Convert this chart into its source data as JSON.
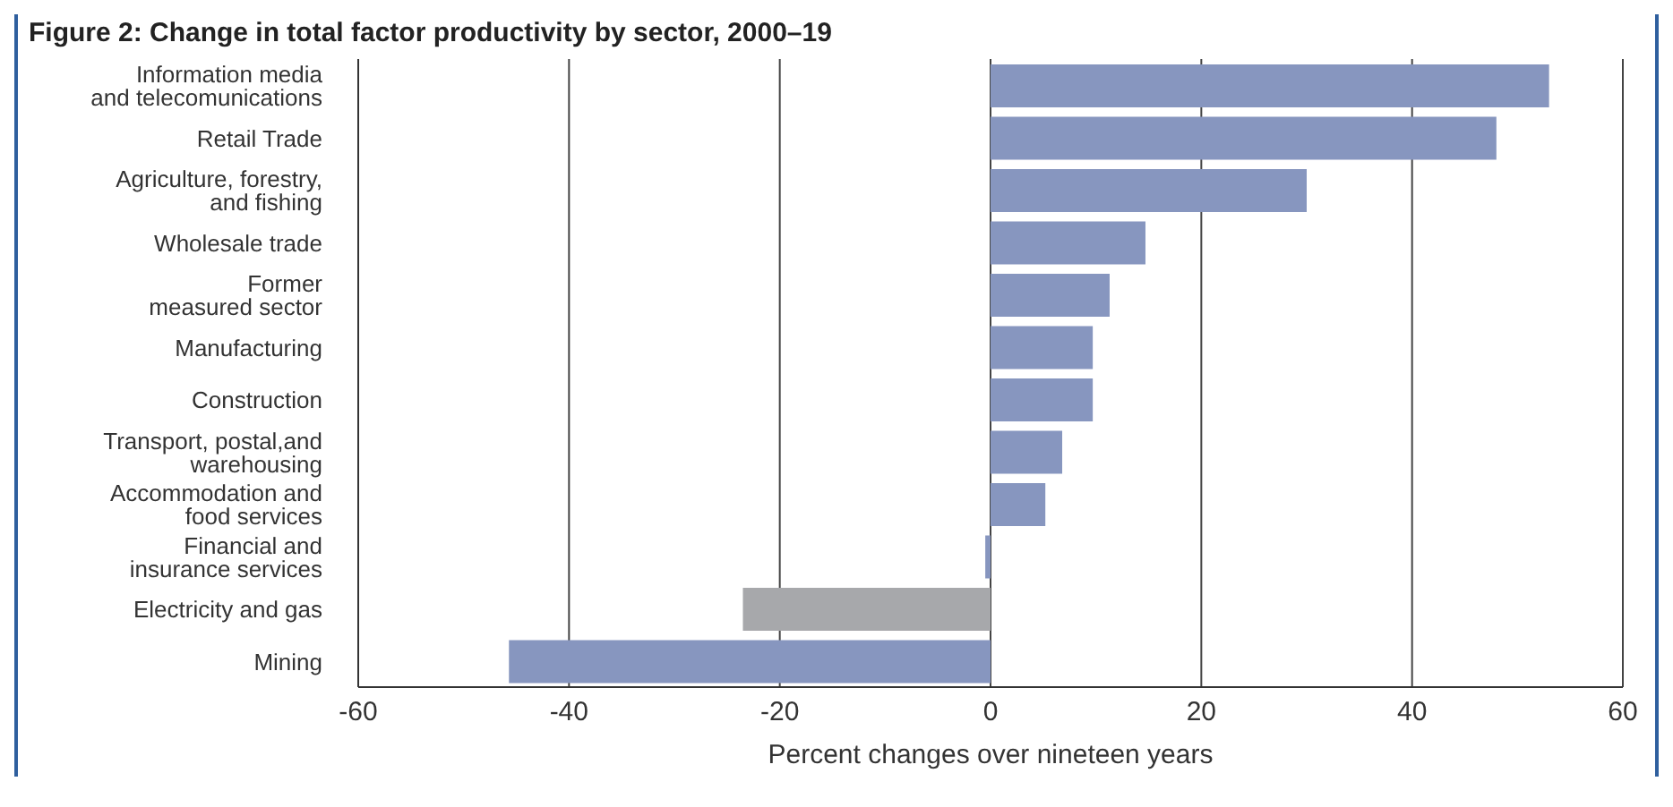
{
  "chart_data": {
    "type": "bar",
    "orientation": "horizontal",
    "title": "Figure 2: Change in total factor productivity by sector, 2000–19",
    "xlabel": "Percent changes over nineteen years",
    "categories": [
      "Information media\nand telecomunications",
      "Retail Trade",
      "Agriculture, forestry,\nand fishing",
      "Wholesale trade",
      "Former\nmeasured sector",
      "Manufacturing",
      "Construction",
      "Transport, postal,and\nwarehousing",
      "Accommodation and\nfood services",
      "Financial and\ninsurance services",
      "Electricity and gas",
      "Mining"
    ],
    "values": [
      53,
      48,
      30,
      14.7,
      11.3,
      9.7,
      9.7,
      6.8,
      5.2,
      -0.5,
      -23.5,
      -45.7
    ],
    "colors": [
      "#8796bf",
      "#8796bf",
      "#8796bf",
      "#8796bf",
      "#8796bf",
      "#8796bf",
      "#8796bf",
      "#8796bf",
      "#8796bf",
      "#8796bf",
      "#a7a8ab",
      "#8796bf"
    ],
    "xlim": [
      -60,
      60
    ],
    "xticks": [
      -60,
      -40,
      -20,
      0,
      20,
      40,
      60
    ],
    "grid": "x",
    "legend": false
  }
}
